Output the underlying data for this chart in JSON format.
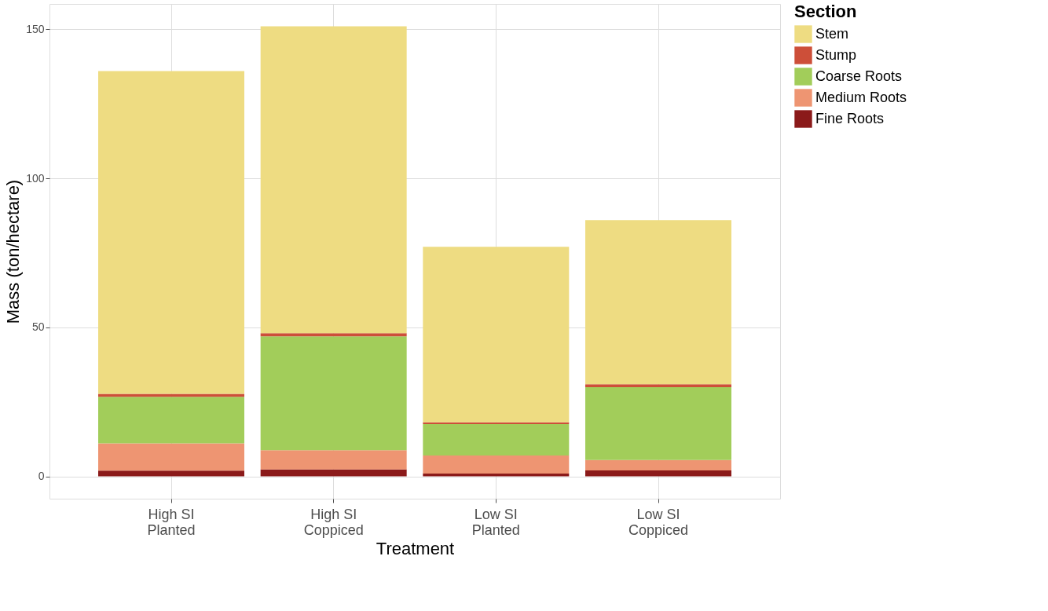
{
  "chart_data": {
    "type": "bar",
    "stacked": true,
    "xlabel": "Treatment",
    "ylabel": "Mass (ton/hectare)",
    "legend_title": "Section",
    "legend": "right",
    "categories": [
      "High SI\nPlanted",
      "High SI\nCoppiced",
      "Low SI\nPlanted",
      "Low SI\nCoppiced"
    ],
    "series": [
      {
        "name": "Fine Roots",
        "color": "#8b1a1a",
        "values": [
          1.9,
          2.3,
          0.9,
          2.0
        ]
      },
      {
        "name": "Medium Roots",
        "color": "#ee9572",
        "values": [
          9.2,
          6.5,
          6.1,
          3.5
        ]
      },
      {
        "name": "Coarse Roots",
        "color": "#a2cd5a",
        "values": [
          15.6,
          38.2,
          10.5,
          24.4
        ]
      },
      {
        "name": "Stump",
        "color": "#cd4f39",
        "values": [
          1.0,
          1.0,
          0.6,
          1.0
        ]
      },
      {
        "name": "Stem",
        "color": "#eedc82",
        "values": [
          108.3,
          103.0,
          58.9,
          55.1
        ]
      }
    ],
    "ylim": [
      -7.5,
      158.5
    ],
    "yticks": [
      0,
      50,
      100,
      150
    ],
    "grid": true
  }
}
